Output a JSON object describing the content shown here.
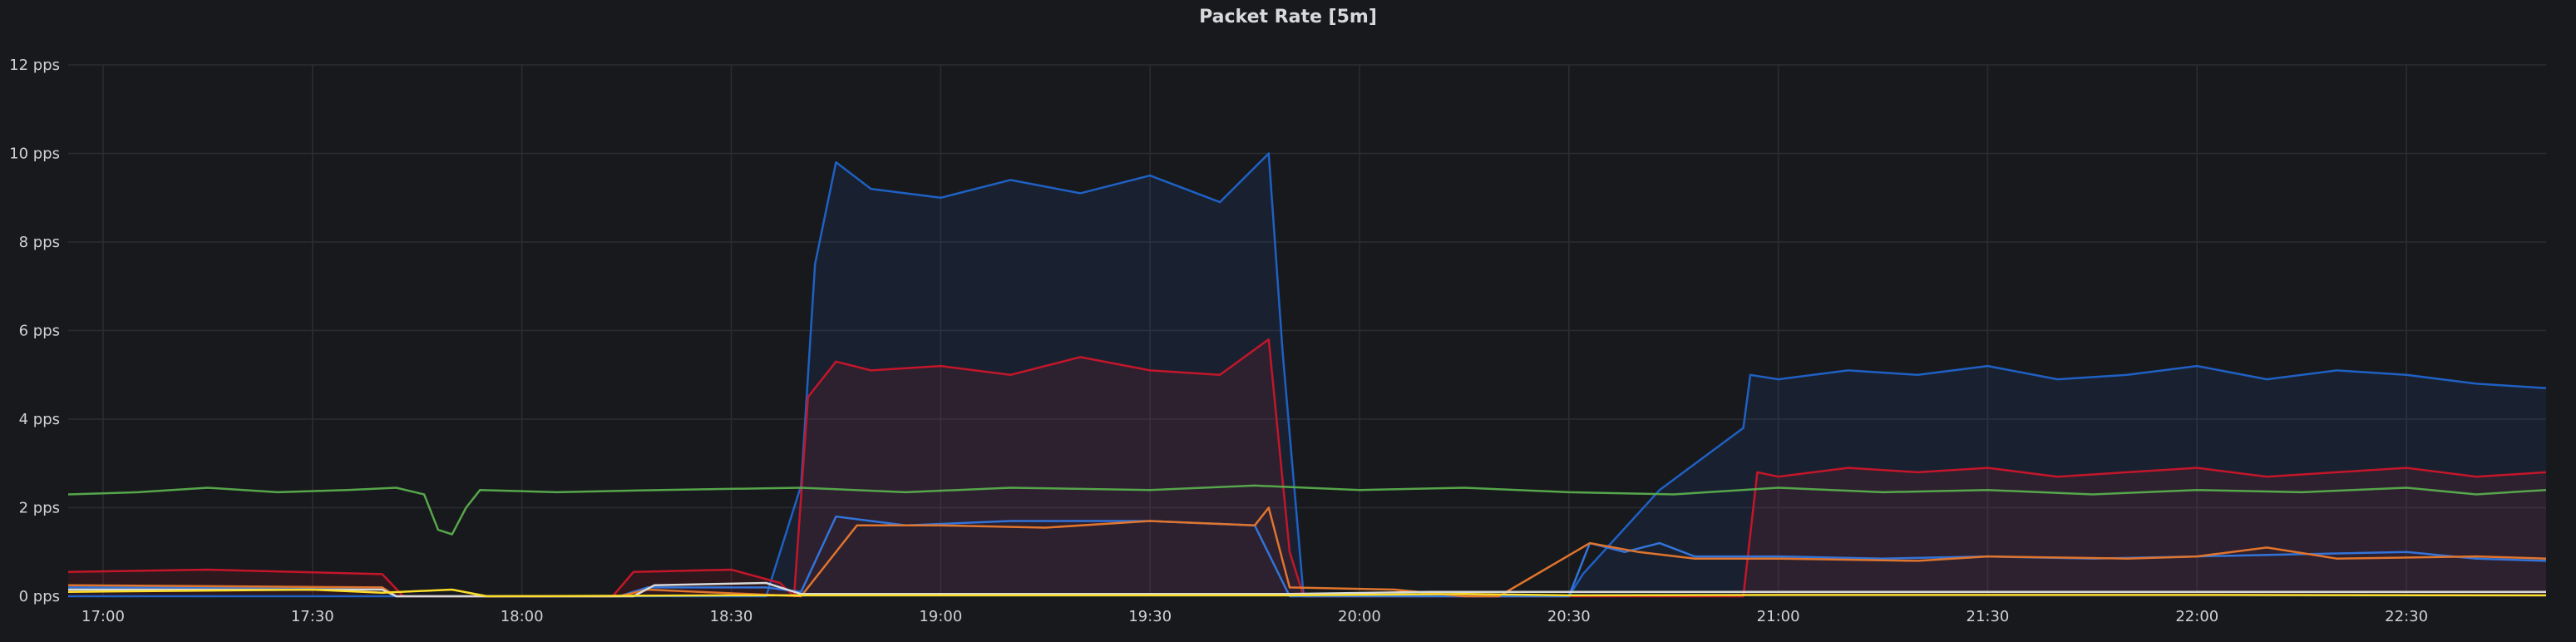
{
  "panel": {
    "title": "Packet Rate [5m]"
  },
  "chart_data": {
    "type": "area",
    "title": "Packet Rate [5m]",
    "xlabel": "",
    "ylabel": "",
    "grid": true,
    "legend": "none",
    "x_ticks": [
      "17:00",
      "17:30",
      "18:00",
      "18:30",
      "19:00",
      "19:30",
      "20:00",
      "20:30",
      "21:00",
      "21:30",
      "22:00",
      "22:30"
    ],
    "x_range": [
      "16:55",
      "22:50"
    ],
    "y_ticks": [
      "0 pps",
      "2 pps",
      "4 pps",
      "6 pps",
      "8 pps",
      "10 pps",
      "12 pps"
    ],
    "ylim": [
      0,
      12
    ],
    "series": [
      {
        "color": "#1f60c4",
        "fill": true,
        "points": [
          [
            "16:55",
            0
          ],
          [
            "18:35",
            0
          ],
          [
            "18:40",
            2.5
          ],
          [
            "18:42",
            7.5
          ],
          [
            "18:45",
            9.8
          ],
          [
            "18:50",
            9.2
          ],
          [
            "19:00",
            9.0
          ],
          [
            "19:10",
            9.4
          ],
          [
            "19:20",
            9.1
          ],
          [
            "19:30",
            9.5
          ],
          [
            "19:40",
            8.9
          ],
          [
            "19:47",
            10.0
          ],
          [
            "19:49",
            5.5
          ],
          [
            "19:52",
            0
          ],
          [
            "20:30",
            0
          ],
          [
            "20:32",
            0.5
          ],
          [
            "20:43",
            2.4
          ],
          [
            "20:55",
            3.8
          ],
          [
            "20:56",
            5.0
          ],
          [
            "21:00",
            4.9
          ],
          [
            "21:10",
            5.1
          ],
          [
            "21:20",
            5.0
          ],
          [
            "21:30",
            5.2
          ],
          [
            "21:40",
            4.9
          ],
          [
            "21:50",
            5.0
          ],
          [
            "22:00",
            5.2
          ],
          [
            "22:10",
            4.9
          ],
          [
            "22:20",
            5.1
          ],
          [
            "22:30",
            5.0
          ],
          [
            "22:40",
            4.8
          ],
          [
            "22:50",
            4.7
          ]
        ]
      },
      {
        "color": "#c4162a",
        "fill": true,
        "points": [
          [
            "16:55",
            0.55
          ],
          [
            "17:15",
            0.6
          ],
          [
            "17:40",
            0.5
          ],
          [
            "17:43",
            0
          ],
          [
            "18:13",
            0
          ],
          [
            "18:16",
            0.55
          ],
          [
            "18:30",
            0.6
          ],
          [
            "18:37",
            0.3
          ],
          [
            "18:39",
            0
          ],
          [
            "18:41",
            4.5
          ],
          [
            "18:45",
            5.3
          ],
          [
            "18:50",
            5.1
          ],
          [
            "19:00",
            5.2
          ],
          [
            "19:10",
            5.0
          ],
          [
            "19:20",
            5.4
          ],
          [
            "19:30",
            5.1
          ],
          [
            "19:40",
            5.0
          ],
          [
            "19:47",
            5.8
          ],
          [
            "19:50",
            1.0
          ],
          [
            "19:52",
            0
          ],
          [
            "20:55",
            0
          ],
          [
            "20:57",
            2.8
          ],
          [
            "21:00",
            2.7
          ],
          [
            "21:10",
            2.9
          ],
          [
            "21:20",
            2.8
          ],
          [
            "21:30",
            2.9
          ],
          [
            "21:40",
            2.7
          ],
          [
            "21:50",
            2.8
          ],
          [
            "22:00",
            2.9
          ],
          [
            "22:10",
            2.7
          ],
          [
            "22:20",
            2.8
          ],
          [
            "22:30",
            2.9
          ],
          [
            "22:40",
            2.7
          ],
          [
            "22:50",
            2.8
          ]
        ]
      },
      {
        "color": "#56a64b",
        "fill": false,
        "points": [
          [
            "16:55",
            2.3
          ],
          [
            "17:05",
            2.35
          ],
          [
            "17:15",
            2.45
          ],
          [
            "17:25",
            2.35
          ],
          [
            "17:35",
            2.4
          ],
          [
            "17:42",
            2.45
          ],
          [
            "17:46",
            2.3
          ],
          [
            "17:48",
            1.5
          ],
          [
            "17:50",
            1.4
          ],
          [
            "17:52",
            2.0
          ],
          [
            "17:54",
            2.4
          ],
          [
            "18:05",
            2.35
          ],
          [
            "18:20",
            2.4
          ],
          [
            "18:40",
            2.45
          ],
          [
            "18:55",
            2.35
          ],
          [
            "19:10",
            2.45
          ],
          [
            "19:30",
            2.4
          ],
          [
            "19:45",
            2.5
          ],
          [
            "20:00",
            2.4
          ],
          [
            "20:15",
            2.45
          ],
          [
            "20:30",
            2.35
          ],
          [
            "20:45",
            2.3
          ],
          [
            "21:00",
            2.45
          ],
          [
            "21:15",
            2.35
          ],
          [
            "21:30",
            2.4
          ],
          [
            "21:45",
            2.3
          ],
          [
            "22:00",
            2.4
          ],
          [
            "22:15",
            2.35
          ],
          [
            "22:30",
            2.45
          ],
          [
            "22:40",
            2.3
          ],
          [
            "22:50",
            2.4
          ]
        ]
      },
      {
        "color": "#3274d9",
        "fill": false,
        "points": [
          [
            "16:55",
            0.2
          ],
          [
            "17:40",
            0.2
          ],
          [
            "17:42",
            0
          ],
          [
            "18:14",
            0
          ],
          [
            "18:18",
            0.2
          ],
          [
            "18:35",
            0.2
          ],
          [
            "18:40",
            0.1
          ],
          [
            "18:45",
            1.8
          ],
          [
            "18:55",
            1.6
          ],
          [
            "19:10",
            1.7
          ],
          [
            "19:30",
            1.7
          ],
          [
            "19:45",
            1.6
          ],
          [
            "19:50",
            0
          ],
          [
            "20:30",
            0
          ],
          [
            "20:33",
            1.2
          ],
          [
            "20:38",
            1.0
          ],
          [
            "20:43",
            1.2
          ],
          [
            "20:48",
            0.9
          ],
          [
            "21:00",
            0.9
          ],
          [
            "21:15",
            0.85
          ],
          [
            "21:30",
            0.9
          ],
          [
            "21:45",
            0.85
          ],
          [
            "22:00",
            0.9
          ],
          [
            "22:15",
            0.95
          ],
          [
            "22:30",
            1.0
          ],
          [
            "22:40",
            0.85
          ],
          [
            "22:50",
            0.8
          ]
        ]
      },
      {
        "color": "#e0752d",
        "fill": false,
        "points": [
          [
            "16:55",
            0.25
          ],
          [
            "17:40",
            0.2
          ],
          [
            "17:42",
            0
          ],
          [
            "18:14",
            0
          ],
          [
            "18:18",
            0.15
          ],
          [
            "18:40",
            0
          ],
          [
            "18:48",
            1.6
          ],
          [
            "19:00",
            1.6
          ],
          [
            "19:15",
            1.55
          ],
          [
            "19:30",
            1.7
          ],
          [
            "19:45",
            1.6
          ],
          [
            "19:47",
            2.0
          ],
          [
            "19:50",
            0.2
          ],
          [
            "20:05",
            0.15
          ],
          [
            "20:15",
            0
          ],
          [
            "20:20",
            0
          ],
          [
            "20:33",
            1.2
          ],
          [
            "20:40",
            1.0
          ],
          [
            "20:48",
            0.85
          ],
          [
            "21:00",
            0.85
          ],
          [
            "21:20",
            0.8
          ],
          [
            "21:30",
            0.9
          ],
          [
            "21:50",
            0.85
          ],
          [
            "22:00",
            0.9
          ],
          [
            "22:10",
            1.1
          ],
          [
            "22:20",
            0.85
          ],
          [
            "22:40",
            0.9
          ],
          [
            "22:50",
            0.85
          ]
        ]
      },
      {
        "color": "#d8d9da",
        "fill": false,
        "points": [
          [
            "16:55",
            0.15
          ],
          [
            "17:40",
            0.15
          ],
          [
            "17:42",
            0
          ],
          [
            "18:16",
            0
          ],
          [
            "18:19",
            0.25
          ],
          [
            "18:35",
            0.3
          ],
          [
            "18:40",
            0.05
          ],
          [
            "19:50",
            0.05
          ],
          [
            "20:10",
            0.1
          ],
          [
            "20:50",
            0.1
          ],
          [
            "21:30",
            0.1
          ],
          [
            "22:50",
            0.1
          ]
        ]
      },
      {
        "color": "#fade2a",
        "fill": false,
        "points": [
          [
            "16:55",
            0.1
          ],
          [
            "17:30",
            0.15
          ],
          [
            "17:40",
            0.08
          ],
          [
            "17:50",
            0.15
          ],
          [
            "17:55",
            0.0
          ],
          [
            "18:30",
            0.02
          ],
          [
            "19:50",
            0.02
          ],
          [
            "20:15",
            0.05
          ],
          [
            "20:30",
            0.02
          ],
          [
            "21:00",
            0.03
          ],
          [
            "22:00",
            0.03
          ],
          [
            "22:50",
            0.02
          ]
        ]
      }
    ]
  }
}
